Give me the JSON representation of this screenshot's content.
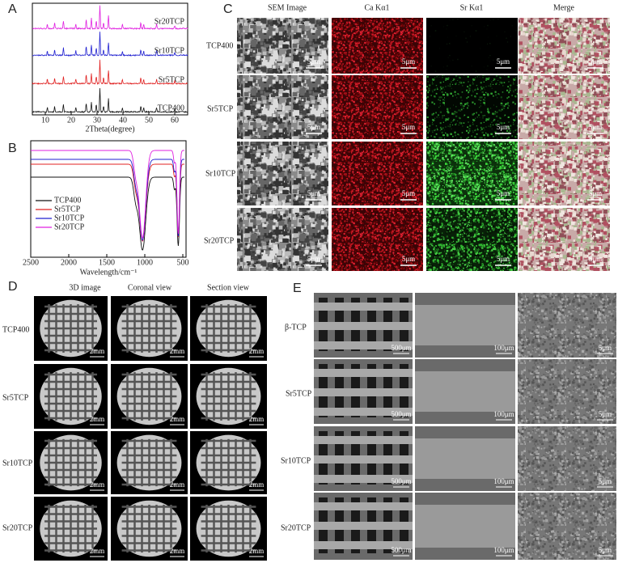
{
  "panel_a": {
    "label": "A",
    "x_axis_label": "2Theta(degree)",
    "x_ticks": [
      "10",
      "20",
      "30",
      "40",
      "50",
      "60"
    ],
    "series": [
      "Sr20TCP",
      "Sr10TCP",
      "Sr5TCP",
      "TCP400"
    ]
  },
  "panel_b": {
    "label": "B",
    "x_axis_label": "Wavelength/cm⁻¹",
    "x_ticks": [
      "2500",
      "2000",
      "1500",
      "1000",
      "500"
    ],
    "legend": [
      "TCP400",
      "Sr5TCP",
      "Sr10TCP",
      "Sr20TCP"
    ]
  },
  "panel_c": {
    "label": "C",
    "columns": [
      "SEM Image",
      "Ca Kα1",
      "Sr Kα1",
      "Merge"
    ],
    "rows": [
      "TCP400",
      "Sr5TCP",
      "Sr10TCP",
      "Sr20TCP"
    ],
    "scale_bar": "5μm"
  },
  "panel_d": {
    "label": "D",
    "columns": [
      "3D image",
      "Coronal view",
      "Section view"
    ],
    "rows": [
      "TCP400",
      "Sr5TCP",
      "Sr10TCP",
      "Sr20TCP"
    ],
    "scale_bar": "2mm"
  },
  "panel_e": {
    "label": "E",
    "rows": [
      "β-TCP",
      "Sr5TCP",
      "Sr10TCP",
      "Sr20TCP"
    ],
    "scale_bars": [
      "500μm",
      "100μm",
      "5μm"
    ]
  }
}
